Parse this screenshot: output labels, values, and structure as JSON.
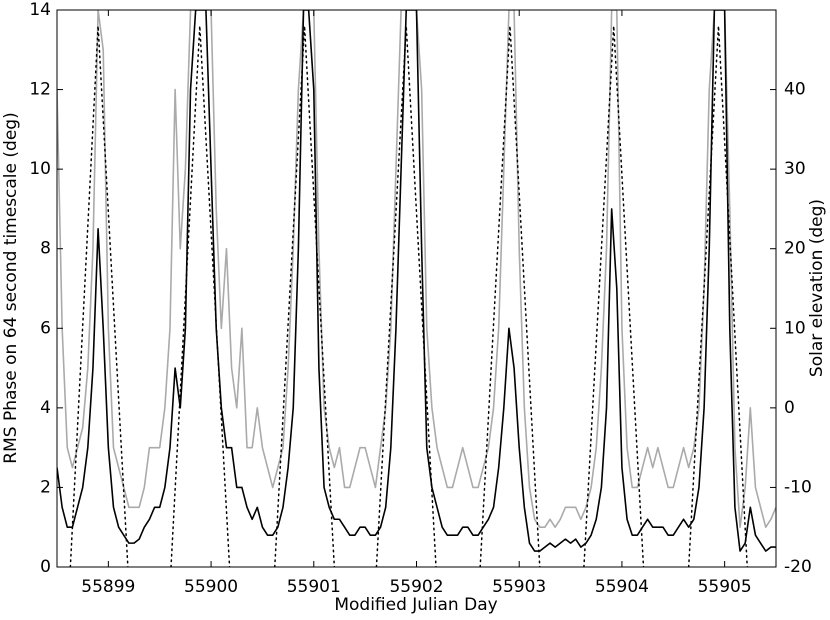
{
  "chart_data": {
    "type": "line",
    "xlabel": "Modified Julian Day",
    "ylabel": "RMS Phase on 64 second timescale (deg)",
    "y2label": "Solar elevation (deg)",
    "xlim": [
      55898.5,
      55905.5
    ],
    "xticks": [
      55899,
      55900,
      55901,
      55902,
      55903,
      55904,
      55905
    ],
    "ylim": [
      0,
      14
    ],
    "yticks": [
      0,
      2,
      4,
      6,
      8,
      10,
      12,
      14
    ],
    "y2lim": [
      -20,
      50
    ],
    "y2ticks": [
      -20,
      -10,
      0,
      10,
      20,
      30,
      40
    ],
    "x": [
      55898.5,
      55898.55,
      55898.6,
      55898.65,
      55898.7,
      55898.75,
      55898.8,
      55898.85,
      55898.9,
      55898.95,
      55899,
      55899.05,
      55899.1,
      55899.15,
      55899.2,
      55899.25,
      55899.3,
      55899.35,
      55899.4,
      55899.45,
      55899.5,
      55899.55,
      55899.6,
      55899.65,
      55899.7,
      55899.75,
      55899.8,
      55899.85,
      55899.9,
      55899.95,
      55900,
      55900.05,
      55900.1,
      55900.15,
      55900.2,
      55900.25,
      55900.3,
      55900.35,
      55900.4,
      55900.45,
      55900.5,
      55900.55,
      55900.6,
      55900.65,
      55900.7,
      55900.75,
      55900.8,
      55900.85,
      55900.9,
      55900.95,
      55901,
      55901.05,
      55901.1,
      55901.15,
      55901.2,
      55901.25,
      55901.3,
      55901.35,
      55901.4,
      55901.45,
      55901.5,
      55901.55,
      55901.6,
      55901.65,
      55901.7,
      55901.75,
      55901.8,
      55901.85,
      55901.9,
      55901.95,
      55902,
      55902.05,
      55902.1,
      55902.15,
      55902.2,
      55902.25,
      55902.3,
      55902.35,
      55902.4,
      55902.45,
      55902.5,
      55902.55,
      55902.6,
      55902.65,
      55902.7,
      55902.75,
      55902.8,
      55902.85,
      55902.9,
      55902.95,
      55903,
      55903.05,
      55903.1,
      55903.15,
      55903.2,
      55903.25,
      55903.3,
      55903.35,
      55903.4,
      55903.45,
      55903.5,
      55903.55,
      55903.6,
      55903.65,
      55903.7,
      55903.75,
      55903.8,
      55903.85,
      55903.9,
      55903.95,
      55904,
      55904.05,
      55904.1,
      55904.15,
      55904.2,
      55904.25,
      55904.3,
      55904.35,
      55904.4,
      55904.45,
      55904.5,
      55904.55,
      55904.6,
      55904.65,
      55904.7,
      55904.75,
      55904.8,
      55904.85,
      55904.9,
      55904.95,
      55905,
      55905.05,
      55905.1,
      55905.15,
      55905.2,
      55905.25,
      55905.3,
      55905.35,
      55905.4,
      55905.45,
      55905.5
    ],
    "series": [
      {
        "color": "#aaaaaa",
        "values": [
          12,
          6,
          3,
          2.5,
          3,
          3.5,
          5,
          8,
          14,
          13,
          6,
          3,
          2.5,
          2,
          1.5,
          1.5,
          1.5,
          2,
          3,
          3,
          3,
          4,
          6,
          12,
          8,
          10,
          14,
          14,
          14,
          14,
          14,
          9,
          6,
          8,
          5,
          4,
          6,
          3,
          3,
          4,
          3,
          2.5,
          2,
          2.5,
          3,
          5,
          8,
          12,
          14,
          14,
          14,
          8,
          4,
          3,
          2.5,
          3,
          2,
          2,
          2.5,
          3,
          3,
          2.5,
          2,
          3,
          4,
          6,
          10,
          14,
          14,
          14,
          14,
          12,
          6,
          4,
          3,
          2.5,
          2,
          2,
          2.5,
          3,
          2.5,
          2,
          2,
          2.5,
          3,
          4,
          6,
          10,
          14,
          14,
          8,
          4,
          2,
          1.2,
          1,
          1,
          1.2,
          1,
          1.2,
          1.5,
          1.5,
          1.5,
          1.2,
          1.5,
          2,
          3,
          5,
          8,
          14,
          14,
          6,
          3,
          2,
          2,
          2.5,
          3,
          2.5,
          3,
          2.5,
          2,
          2,
          2.5,
          3,
          2.5,
          3,
          4,
          7,
          12,
          14,
          14,
          14,
          9,
          3,
          1,
          2,
          4,
          2,
          1.5,
          1,
          1.2,
          1.5
        ]
      },
      {
        "color": "#000000",
        "values": [
          2.5,
          1.5,
          1,
          1,
          1.5,
          2,
          3,
          5,
          8.5,
          6,
          3,
          1.5,
          1,
          0.8,
          0.6,
          0.6,
          0.7,
          1,
          1.2,
          1.5,
          1.5,
          2,
          3,
          5,
          4,
          6,
          12,
          14,
          14,
          14,
          10,
          6,
          4,
          3,
          3,
          2,
          2,
          1.5,
          1.2,
          1.5,
          1,
          0.8,
          0.8,
          1,
          1.5,
          2.5,
          4,
          8,
          14,
          14,
          12,
          5,
          2,
          1.5,
          1.2,
          1.2,
          1,
          0.8,
          0.8,
          1,
          1,
          0.8,
          0.8,
          1,
          1.5,
          3,
          6,
          10,
          14,
          14,
          14,
          8,
          3,
          2,
          1.5,
          1,
          0.8,
          0.8,
          0.8,
          1,
          1,
          0.8,
          0.8,
          1,
          1.2,
          1.5,
          2.5,
          4,
          6,
          5,
          3,
          1.5,
          0.6,
          0.4,
          0.4,
          0.5,
          0.6,
          0.5,
          0.6,
          0.7,
          0.6,
          0.7,
          0.5,
          0.6,
          0.8,
          1.2,
          2,
          4,
          9,
          7,
          2.5,
          1.2,
          0.8,
          0.8,
          1,
          1.2,
          1,
          1,
          1,
          0.8,
          0.8,
          1,
          1.2,
          1,
          1.2,
          2,
          4,
          8,
          14,
          14,
          14,
          6,
          1.5,
          0.4,
          0.6,
          1.5,
          0.8,
          0.6,
          0.4,
          0.5,
          0.5
        ]
      },
      {
        "color": "#000000",
        "axis": "y2",
        "dotted": true,
        "x": [
          55898.63,
          55898.9,
          55899.19,
          55899.4,
          55899.61,
          55899.89,
          55900.18,
          55900.4,
          55900.62,
          55900.91,
          55901.2,
          55901.4,
          55901.61,
          55901.9,
          55902.19,
          55902.4,
          55902.62,
          55902.91,
          55903.2,
          55903.4,
          55903.63,
          55903.92,
          55904.21,
          55904.4,
          55904.65,
          55904.94,
          55905.22,
          55905.4
        ],
        "values": [
          -20,
          48,
          -20,
          null,
          -20,
          48,
          -20,
          null,
          -20,
          48,
          -20,
          null,
          -20,
          48,
          -20,
          null,
          -20,
          48,
          -20,
          null,
          -20,
          48,
          -20,
          null,
          -20,
          48,
          -20,
          null
        ]
      }
    ]
  }
}
